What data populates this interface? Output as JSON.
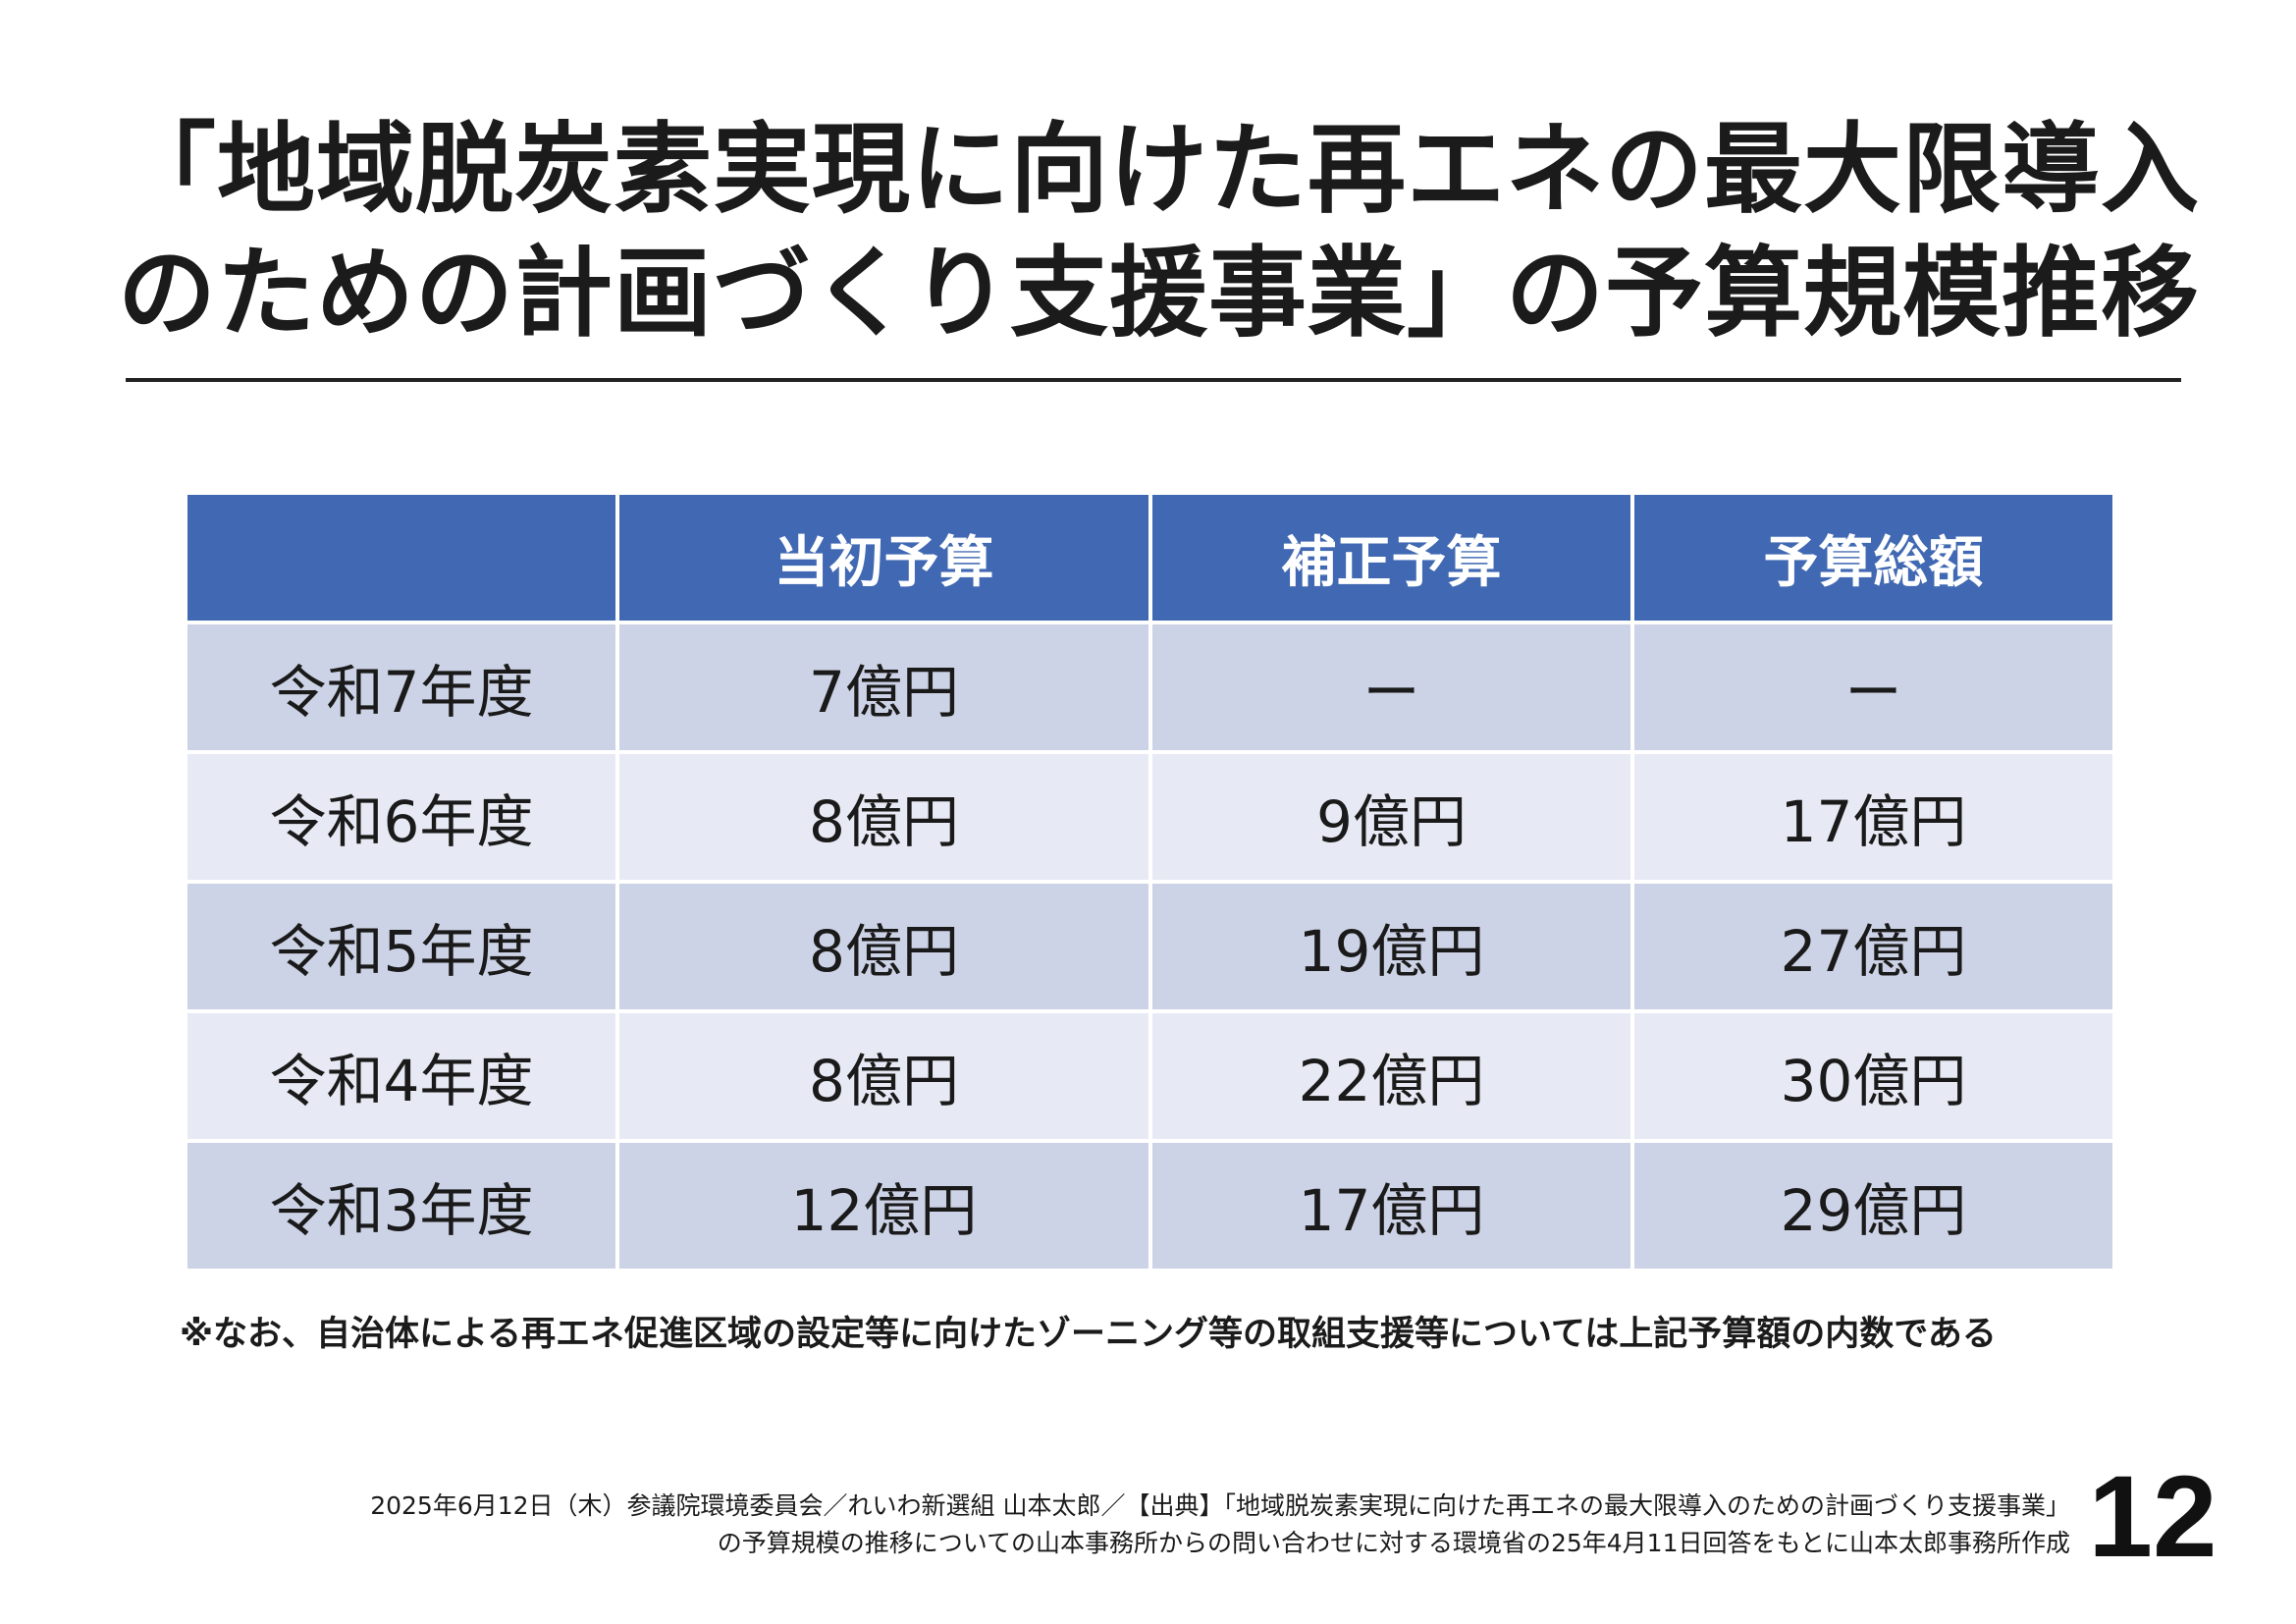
{
  "title": {
    "line1": "「地域脱炭素実現に向けた再エネの最大限導入",
    "line2": "のための計画づくり支援事業」の予算規模推移"
  },
  "table": {
    "headers": [
      "",
      "当初予算",
      "補正予算",
      "予算総額"
    ],
    "rows": [
      {
        "year": "令和7年度",
        "initial": "7億円",
        "supplementary": "ー",
        "total": "ー"
      },
      {
        "year": "令和6年度",
        "initial": "8億円",
        "supplementary": "9億円",
        "total": "17億円"
      },
      {
        "year": "令和5年度",
        "initial": "8億円",
        "supplementary": "19億円",
        "total": "27億円"
      },
      {
        "year": "令和4年度",
        "initial": "8億円",
        "supplementary": "22億円",
        "total": "30億円"
      },
      {
        "year": "令和3年度",
        "initial": "12億円",
        "supplementary": "17億円",
        "total": "29億円"
      }
    ]
  },
  "note": "※なお、自治体による再エネ促進区域の設定等に向けたゾーニング等の取組支援等については上記予算額の内数である",
  "footer": {
    "line1": "2025年6月12日（木）参議院環境委員会／れいわ新選組 山本太郎／【出典】「地域脱炭素実現に向けた再エネの最大限導入のための計画づくり支援事業」",
    "line2": "の予算規模の推移についての山本事務所からの問い合わせに対する環境省の25年4月11日回答をもとに山本太郎事務所作成"
  },
  "page_number": "12",
  "colors": {
    "header_bg": "#4169b3",
    "row_dark": "#cdd3e6",
    "row_light": "#e7eaf4"
  }
}
